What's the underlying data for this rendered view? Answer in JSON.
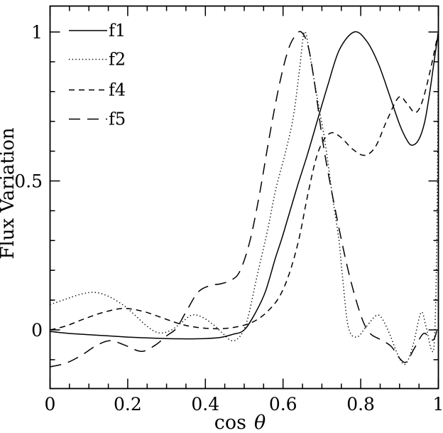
{
  "chart_data": {
    "type": "line",
    "title": "",
    "xlabel_roman": "cos",
    "xlabel_symbol": "θ",
    "ylabel": "Flux Variation",
    "xlim": [
      0,
      1
    ],
    "ylim": [
      -0.198,
      1.085
    ],
    "grid": false,
    "legend_position": "top-left",
    "x_major_ticks": [
      0,
      0.2,
      0.4,
      0.6,
      0.8,
      1
    ],
    "x_major_labels": [
      "0",
      "0.2",
      "0.4",
      "0.6",
      "0.8",
      "1"
    ],
    "x_minor_step": 0.05,
    "y_major_ticks": [
      0,
      0.5,
      1
    ],
    "y_major_labels": [
      "0",
      "0.5",
      "1"
    ],
    "y_minor_step": 0.1,
    "stroke_color": "#000000",
    "background_color": "#ffffff",
    "series": [
      {
        "name": "f1",
        "line_style": "solid",
        "points": [
          [
            0,
            -0.005
          ],
          [
            0.05,
            -0.012
          ],
          [
            0.1,
            -0.016
          ],
          [
            0.15,
            -0.02
          ],
          [
            0.2,
            -0.024
          ],
          [
            0.25,
            -0.027
          ],
          [
            0.3,
            -0.029
          ],
          [
            0.35,
            -0.03
          ],
          [
            0.4,
            -0.029
          ],
          [
            0.44,
            -0.025
          ],
          [
            0.47,
            -0.015
          ],
          [
            0.5,
            0.0
          ],
          [
            0.53,
            0.06
          ],
          [
            0.555,
            0.13
          ],
          [
            0.58,
            0.24
          ],
          [
            0.6,
            0.32
          ],
          [
            0.634,
            0.47
          ],
          [
            0.663,
            0.59
          ],
          [
            0.69,
            0.71
          ],
          [
            0.715,
            0.82
          ],
          [
            0.745,
            0.94
          ],
          [
            0.783,
            1.0
          ],
          [
            0.815,
            0.97
          ],
          [
            0.845,
            0.895
          ],
          [
            0.875,
            0.785
          ],
          [
            0.9,
            0.69
          ],
          [
            0.92,
            0.635
          ],
          [
            0.933,
            0.62
          ],
          [
            0.95,
            0.64
          ],
          [
            0.965,
            0.7
          ],
          [
            0.978,
            0.8
          ],
          [
            0.99,
            0.91
          ],
          [
            1,
            1.0
          ]
        ]
      },
      {
        "name": "f2",
        "line_style": "dotted",
        "points": [
          [
            0,
            0.085
          ],
          [
            0.04,
            0.103
          ],
          [
            0.08,
            0.12
          ],
          [
            0.115,
            0.126
          ],
          [
            0.15,
            0.113
          ],
          [
            0.19,
            0.082
          ],
          [
            0.22,
            0.048
          ],
          [
            0.25,
            0.012
          ],
          [
            0.28,
            -0.01
          ],
          [
            0.31,
            -0.002
          ],
          [
            0.34,
            0.026
          ],
          [
            0.365,
            0.05
          ],
          [
            0.39,
            0.044
          ],
          [
            0.42,
            0.018
          ],
          [
            0.445,
            -0.012
          ],
          [
            0.467,
            -0.036
          ],
          [
            0.487,
            -0.025
          ],
          [
            0.505,
            0.02
          ],
          [
            0.52,
            0.1
          ],
          [
            0.533,
            0.18
          ],
          [
            0.561,
            0.34
          ],
          [
            0.581,
            0.47
          ],
          [
            0.607,
            0.6
          ],
          [
            0.627,
            0.72
          ],
          [
            0.642,
            0.87
          ],
          [
            0.655,
            1.0
          ],
          [
            0.668,
            0.93
          ],
          [
            0.685,
            0.8
          ],
          [
            0.707,
            0.64
          ],
          [
            0.727,
            0.45
          ],
          [
            0.744,
            0.3
          ],
          [
            0.753,
            0.18
          ],
          [
            0.768,
            0.01
          ],
          [
            0.79,
            -0.024
          ],
          [
            0.815,
            0.012
          ],
          [
            0.845,
            0.05
          ],
          [
            0.87,
            0.0
          ],
          [
            0.895,
            -0.082
          ],
          [
            0.915,
            -0.115
          ],
          [
            0.935,
            -0.05
          ],
          [
            0.955,
            0.058
          ],
          [
            0.968,
            0.012
          ],
          [
            0.982,
            -0.066
          ],
          [
            0.99,
            -0.03
          ],
          [
            0.996,
            0.3
          ],
          [
            1,
            0.93
          ]
        ]
      },
      {
        "name": "f4",
        "line_style": "short-dash",
        "points": [
          [
            0,
            0.0
          ],
          [
            0.04,
            0.013
          ],
          [
            0.09,
            0.038
          ],
          [
            0.14,
            0.06
          ],
          [
            0.19,
            0.072
          ],
          [
            0.24,
            0.062
          ],
          [
            0.29,
            0.04
          ],
          [
            0.33,
            0.022
          ],
          [
            0.37,
            0.01
          ],
          [
            0.42,
            0.004
          ],
          [
            0.46,
            0.006
          ],
          [
            0.5,
            0.016
          ],
          [
            0.53,
            0.032
          ],
          [
            0.56,
            0.062
          ],
          [
            0.59,
            0.11
          ],
          [
            0.615,
            0.185
          ],
          [
            0.64,
            0.3
          ],
          [
            0.663,
            0.45
          ],
          [
            0.685,
            0.575
          ],
          [
            0.705,
            0.638
          ],
          [
            0.726,
            0.662
          ],
          [
            0.75,
            0.645
          ],
          [
            0.78,
            0.606
          ],
          [
            0.81,
            0.586
          ],
          [
            0.838,
            0.615
          ],
          [
            0.868,
            0.705
          ],
          [
            0.898,
            0.781
          ],
          [
            0.918,
            0.762
          ],
          [
            0.94,
            0.729
          ],
          [
            0.958,
            0.765
          ],
          [
            0.978,
            0.865
          ],
          [
            1,
            1.0
          ]
        ]
      },
      {
        "name": "f5",
        "line_style": "long-dash",
        "points": [
          [
            0,
            -0.124
          ],
          [
            0.04,
            -0.112
          ],
          [
            0.08,
            -0.086
          ],
          [
            0.12,
            -0.052
          ],
          [
            0.155,
            -0.036
          ],
          [
            0.19,
            -0.05
          ],
          [
            0.235,
            -0.072
          ],
          [
            0.27,
            -0.052
          ],
          [
            0.3,
            -0.02
          ],
          [
            0.325,
            0.005
          ],
          [
            0.35,
            0.06
          ],
          [
            0.38,
            0.125
          ],
          [
            0.41,
            0.148
          ],
          [
            0.44,
            0.155
          ],
          [
            0.468,
            0.168
          ],
          [
            0.49,
            0.2
          ],
          [
            0.515,
            0.3
          ],
          [
            0.54,
            0.46
          ],
          [
            0.565,
            0.65
          ],
          [
            0.59,
            0.82
          ],
          [
            0.612,
            0.935
          ],
          [
            0.63,
            0.985
          ],
          [
            0.647,
            1.0
          ],
          [
            0.665,
            0.95
          ],
          [
            0.682,
            0.82
          ],
          [
            0.705,
            0.61
          ],
          [
            0.735,
            0.4
          ],
          [
            0.768,
            0.198
          ],
          [
            0.8,
            0.05
          ],
          [
            0.823,
            -0.01
          ],
          [
            0.85,
            -0.032
          ],
          [
            0.878,
            -0.055
          ],
          [
            0.902,
            -0.098
          ],
          [
            0.918,
            -0.107
          ],
          [
            0.938,
            -0.062
          ],
          [
            0.962,
            -0.012
          ],
          [
            0.98,
            -0.032
          ],
          [
            0.99,
            -0.028
          ],
          [
            1,
            0.02
          ]
        ]
      }
    ],
    "legend": [
      {
        "label": "f1"
      },
      {
        "label": "f2"
      },
      {
        "label": "f4"
      },
      {
        "label": "f5"
      }
    ]
  }
}
